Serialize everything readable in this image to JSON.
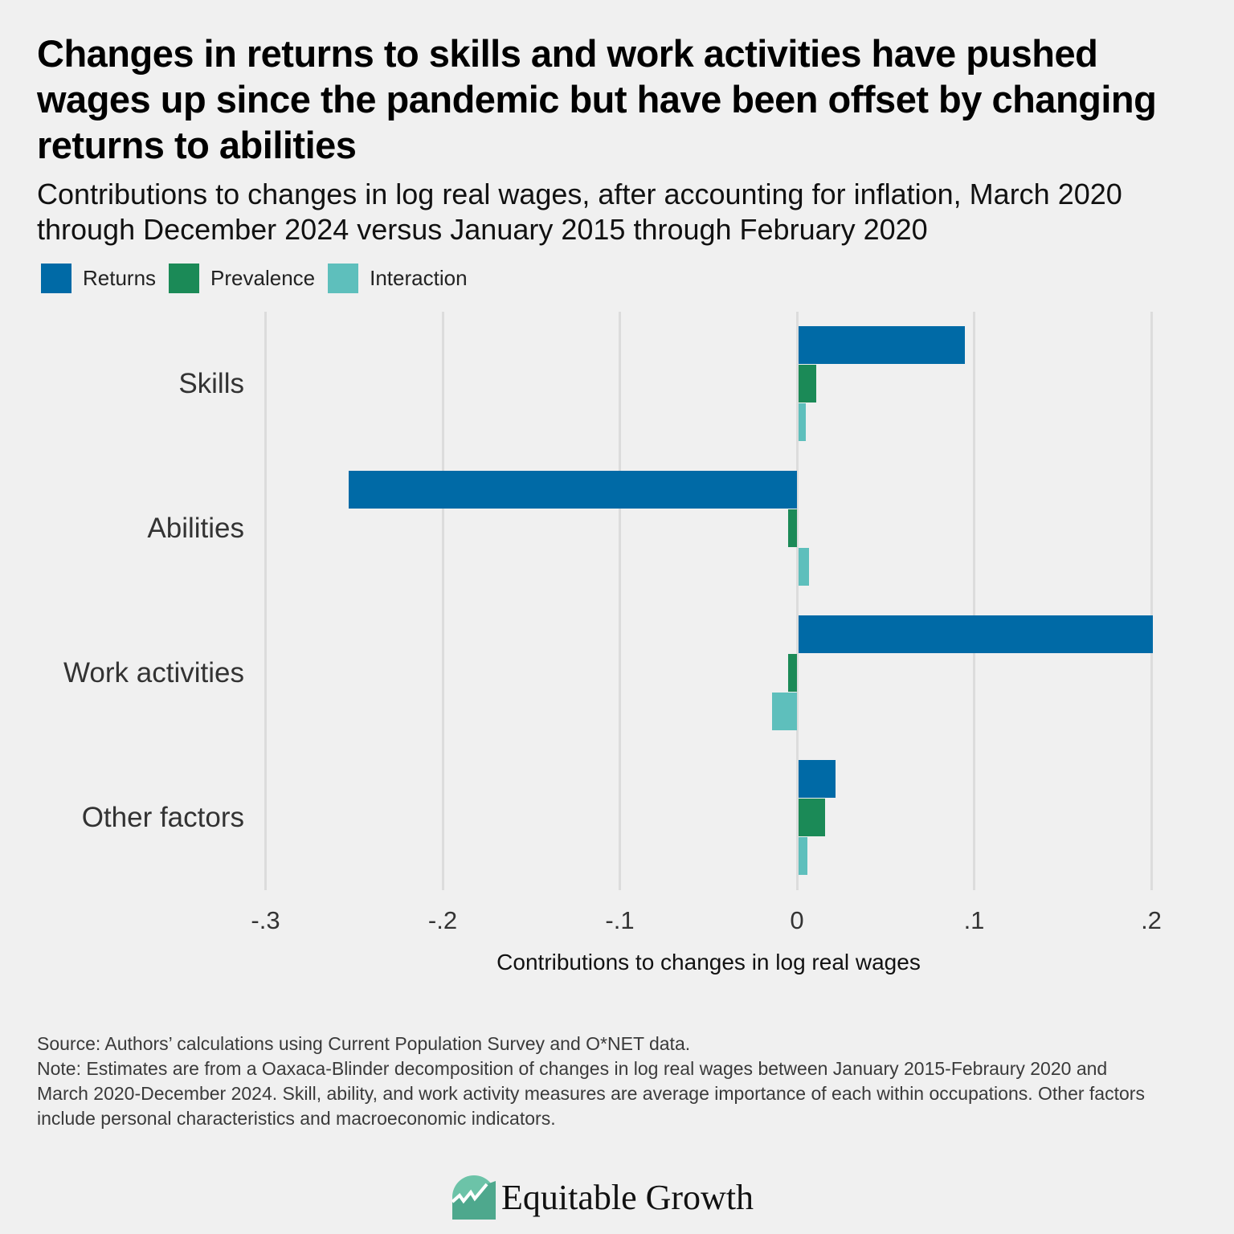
{
  "header": {
    "title": "Changes in returns to skills and work activities have pushed wages up since the pandemic but have been offset by changing returns to abilities",
    "subtitle": "Contributions to changes in log real wages, after accounting for inflation, March 2020 through December 2024 versus January 2015 through February 2020"
  },
  "legend": [
    {
      "label": "Returns",
      "color": "#006aa6"
    },
    {
      "label": "Prevalence",
      "color": "#1b8a57"
    },
    {
      "label": "Interaction",
      "color": "#5ebfbc"
    }
  ],
  "axis": {
    "ticks": [
      "-.3",
      "-.2",
      "-.1",
      "0",
      ".1",
      ".2"
    ],
    "xlabel": "Contributions to changes in log real wages"
  },
  "chart_data": {
    "type": "bar",
    "orientation": "horizontal",
    "title": "Changes in returns to skills and work activities have pushed wages up since the pandemic but have been offset by changing returns to abilities",
    "subtitle": "Contributions to changes in log real wages, after accounting for inflation, March 2020 through December 2024 versus January 2015 through February 2020",
    "categories": [
      "Skills",
      "Abilities",
      "Work activities",
      "Other factors"
    ],
    "series": [
      {
        "name": "Returns",
        "color": "#006aa6",
        "values": [
          0.094,
          -0.253,
          0.2,
          0.021
        ]
      },
      {
        "name": "Prevalence",
        "color": "#1b8a57",
        "values": [
          0.01,
          -0.005,
          -0.005,
          0.015
        ]
      },
      {
        "name": "Interaction",
        "color": "#5ebfbc",
        "values": [
          0.004,
          0.006,
          -0.014,
          0.005
        ]
      }
    ],
    "xlabel": "Contributions to changes in log real wages",
    "ylabel": "",
    "xlim": [
      -0.3,
      0.2
    ],
    "xticks": [
      -0.3,
      -0.2,
      -0.1,
      0,
      0.1,
      0.2
    ],
    "xtick_labels": [
      "-.3",
      "-.2",
      "-.1",
      "0",
      ".1",
      ".2"
    ],
    "grid": true,
    "legend_position": "top-left"
  },
  "footer": {
    "source": "Source: Authors’ calculations using Current Population Survey and O*NET data.",
    "note": "Note: Estimates are from a Oaxaca-Blinder decomposition of changes in log real wages between January 2015-Febraury 2020 and March 2020-December 2024. Skill, ability, and work activity measures are average importance of each within occupations. Other factors include personal characteristics and macroeconomic indicators."
  },
  "brand": {
    "name": "Equitable Growth"
  }
}
